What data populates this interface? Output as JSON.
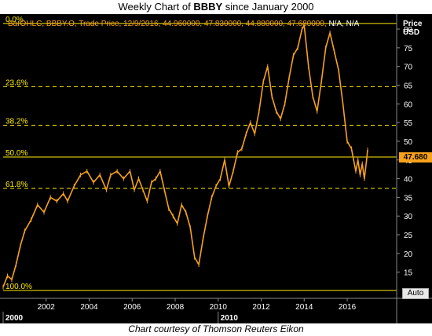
{
  "title_prefix": "Weekly Chart of ",
  "title_ticker": "BBBY",
  "title_suffix": " since January 2000",
  "credit": "Chart courtesy of Thomson Reuters Eikon",
  "legend": {
    "text": "BarOHLC, BBBY.O, Trade Price, 12/9/2016, 44.960000, 47.830000, 44.880000, 47.680000,",
    "na": "N/A, N/A"
  },
  "unit_title": {
    "line1": "Price",
    "line2": "USD"
  },
  "last_price_label": "47.680",
  "auto_button": "Auto",
  "colors": {
    "background": "#000000",
    "price": "#f7a21b",
    "fib": "#ffee00",
    "axis_text": "#ffffff"
  },
  "chart_data": {
    "type": "line",
    "series": [
      {
        "name": "BBBY.O Trade Price",
        "points": [
          [
            2000.0,
            11
          ],
          [
            2000.2,
            14
          ],
          [
            2000.4,
            13
          ],
          [
            2000.6,
            17
          ],
          [
            2000.8,
            22
          ],
          [
            2001.0,
            26
          ],
          [
            2001.3,
            29
          ],
          [
            2001.6,
            33
          ],
          [
            2001.9,
            31
          ],
          [
            2002.2,
            35
          ],
          [
            2002.5,
            34
          ],
          [
            2002.8,
            36
          ],
          [
            2003.0,
            34
          ],
          [
            2003.3,
            38
          ],
          [
            2003.6,
            41
          ],
          [
            2003.9,
            42
          ],
          [
            2004.2,
            39
          ],
          [
            2004.5,
            41
          ],
          [
            2004.8,
            37
          ],
          [
            2005.0,
            41
          ],
          [
            2005.3,
            42
          ],
          [
            2005.6,
            40
          ],
          [
            2005.9,
            42
          ],
          [
            2006.1,
            37
          ],
          [
            2006.3,
            40
          ],
          [
            2006.5,
            37
          ],
          [
            2006.7,
            34
          ],
          [
            2006.9,
            39
          ],
          [
            2007.1,
            40
          ],
          [
            2007.3,
            42
          ],
          [
            2007.5,
            37
          ],
          [
            2007.7,
            32
          ],
          [
            2007.9,
            30
          ],
          [
            2008.1,
            28
          ],
          [
            2008.3,
            33
          ],
          [
            2008.5,
            31
          ],
          [
            2008.7,
            27
          ],
          [
            2008.9,
            19
          ],
          [
            2009.1,
            17
          ],
          [
            2009.3,
            24
          ],
          [
            2009.5,
            30
          ],
          [
            2009.7,
            35
          ],
          [
            2009.9,
            38
          ],
          [
            2010.1,
            40
          ],
          [
            2010.3,
            45
          ],
          [
            2010.5,
            38
          ],
          [
            2010.7,
            42
          ],
          [
            2010.9,
            47
          ],
          [
            2011.1,
            48
          ],
          [
            2011.3,
            52
          ],
          [
            2011.5,
            55
          ],
          [
            2011.7,
            52
          ],
          [
            2011.9,
            58
          ],
          [
            2012.1,
            66
          ],
          [
            2012.3,
            70
          ],
          [
            2012.5,
            62
          ],
          [
            2012.7,
            58
          ],
          [
            2012.9,
            56
          ],
          [
            2013.1,
            60
          ],
          [
            2013.3,
            67
          ],
          [
            2013.5,
            73
          ],
          [
            2013.7,
            75
          ],
          [
            2013.9,
            80
          ],
          [
            2014.0,
            81
          ],
          [
            2014.2,
            70
          ],
          [
            2014.4,
            62
          ],
          [
            2014.6,
            58
          ],
          [
            2014.8,
            66
          ],
          [
            2015.0,
            75
          ],
          [
            2015.2,
            79
          ],
          [
            2015.4,
            74
          ],
          [
            2015.6,
            69
          ],
          [
            2015.8,
            60
          ],
          [
            2016.0,
            50
          ],
          [
            2016.2,
            48
          ],
          [
            2016.4,
            42
          ],
          [
            2016.5,
            45
          ],
          [
            2016.6,
            41
          ],
          [
            2016.7,
            44
          ],
          [
            2016.8,
            40
          ],
          [
            2016.9,
            45
          ],
          [
            2016.95,
            47.68
          ]
        ]
      }
    ],
    "fib_levels": [
      {
        "label": "0.0%",
        "price": 81.5
      },
      {
        "label": "23.6%",
        "price": 64.6
      },
      {
        "label": "38.2%",
        "price": 54.3
      },
      {
        "label": "50.0%",
        "price": 45.8
      },
      {
        "label": "61.8%",
        "price": 37.4
      },
      {
        "label": "100.0%",
        "price": 10.1
      }
    ],
    "yticks": [
      15,
      20,
      25,
      30,
      35,
      40,
      45,
      50,
      55,
      60,
      65,
      70,
      75,
      80
    ],
    "xticks": [
      {
        "value": 2002,
        "label": "2002"
      },
      {
        "value": 2004,
        "label": "2004"
      },
      {
        "value": 2006,
        "label": "2006"
      },
      {
        "value": 2008,
        "label": "2008"
      },
      {
        "value": 2010,
        "label": "2010"
      },
      {
        "value": 2012,
        "label": "2012"
      },
      {
        "value": 2014,
        "label": "2014"
      },
      {
        "value": 2016,
        "label": "2016"
      }
    ],
    "decade_labels": [
      {
        "value": 2000,
        "label": "2000"
      },
      {
        "value": 2010,
        "label": "2010"
      }
    ],
    "xlim": [
      2000.0,
      2018.3
    ],
    "ylim": [
      8,
      84
    ]
  }
}
